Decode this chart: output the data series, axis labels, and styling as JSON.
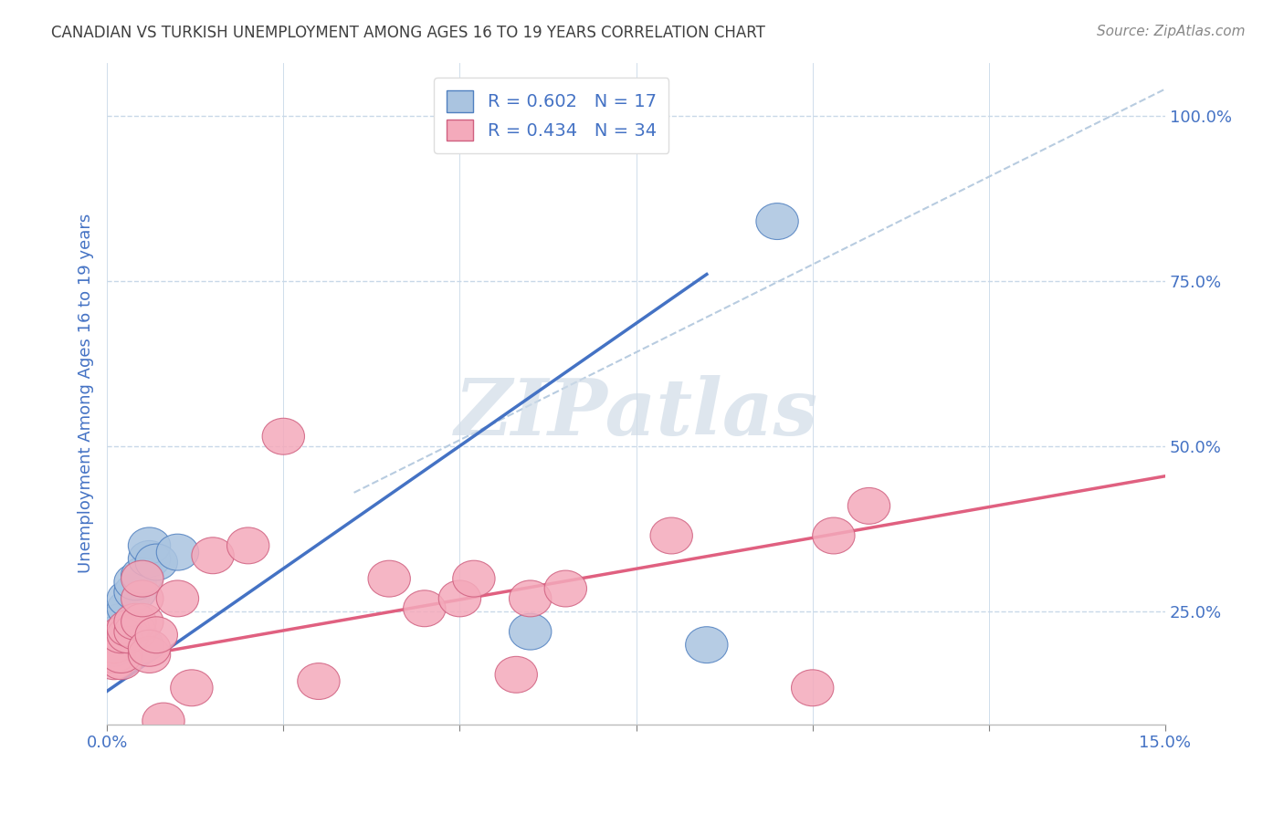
{
  "title": "CANADIAN VS TURKISH UNEMPLOYMENT AMONG AGES 16 TO 19 YEARS CORRELATION CHART",
  "source": "Source: ZipAtlas.com",
  "ylabel_label": "Unemployment Among Ages 16 to 19 years",
  "xlim": [
    0.0,
    0.15
  ],
  "ylim": [
    0.08,
    1.08
  ],
  "xticks": [
    0.0,
    0.025,
    0.05,
    0.075,
    0.1,
    0.125,
    0.15
  ],
  "yticks": [
    0.25,
    0.5,
    0.75,
    1.0
  ],
  "yticklabels": [
    "25.0%",
    "50.0%",
    "75.0%",
    "100.0%"
  ],
  "canadian_R": "0.602",
  "canadian_N": "17",
  "turkish_R": "0.434",
  "turkish_N": "34",
  "canadian_color": "#aac4e0",
  "turkish_color": "#f4aabb",
  "canadian_edge_color": "#5080c0",
  "turkish_edge_color": "#d06080",
  "canadian_line_color": "#4472C4",
  "turkish_line_color": "#E06080",
  "diagonal_color": "#b8cce0",
  "background_color": "#ffffff",
  "grid_color": "#c8d8e8",
  "title_color": "#404040",
  "axis_label_color": "#4472C4",
  "tick_color": "#808080",
  "watermark_color": "#d0dce8",
  "canadian_points_x": [
    0.001,
    0.001,
    0.002,
    0.002,
    0.003,
    0.003,
    0.004,
    0.004,
    0.005,
    0.005,
    0.006,
    0.006,
    0.007,
    0.01,
    0.06,
    0.085,
    0.095
  ],
  "canadian_points_y": [
    0.195,
    0.215,
    0.22,
    0.235,
    0.255,
    0.27,
    0.28,
    0.295,
    0.305,
    0.2,
    0.33,
    0.35,
    0.325,
    0.34,
    0.22,
    0.2,
    0.84
  ],
  "turkish_points_x": [
    0.001,
    0.001,
    0.001,
    0.002,
    0.002,
    0.002,
    0.003,
    0.003,
    0.004,
    0.004,
    0.005,
    0.005,
    0.005,
    0.006,
    0.006,
    0.007,
    0.008,
    0.01,
    0.012,
    0.015,
    0.02,
    0.025,
    0.03,
    0.04,
    0.045,
    0.05,
    0.052,
    0.058,
    0.06,
    0.065,
    0.08,
    0.1,
    0.103,
    0.108
  ],
  "turkish_points_y": [
    0.175,
    0.185,
    0.2,
    0.175,
    0.185,
    0.215,
    0.215,
    0.225,
    0.22,
    0.235,
    0.235,
    0.27,
    0.3,
    0.185,
    0.195,
    0.215,
    0.085,
    0.27,
    0.135,
    0.335,
    0.35,
    0.515,
    0.145,
    0.3,
    0.255,
    0.27,
    0.3,
    0.155,
    0.27,
    0.285,
    0.365,
    0.135,
    0.365,
    0.41
  ],
  "canadian_line_x": [
    0.0,
    0.085
  ],
  "canadian_line_y": [
    0.13,
    0.76
  ],
  "turkish_line_x": [
    0.0,
    0.15
  ],
  "turkish_line_y": [
    0.175,
    0.455
  ],
  "diagonal_line_x": [
    0.035,
    0.15
  ],
  "diagonal_line_y": [
    0.43,
    1.04
  ]
}
